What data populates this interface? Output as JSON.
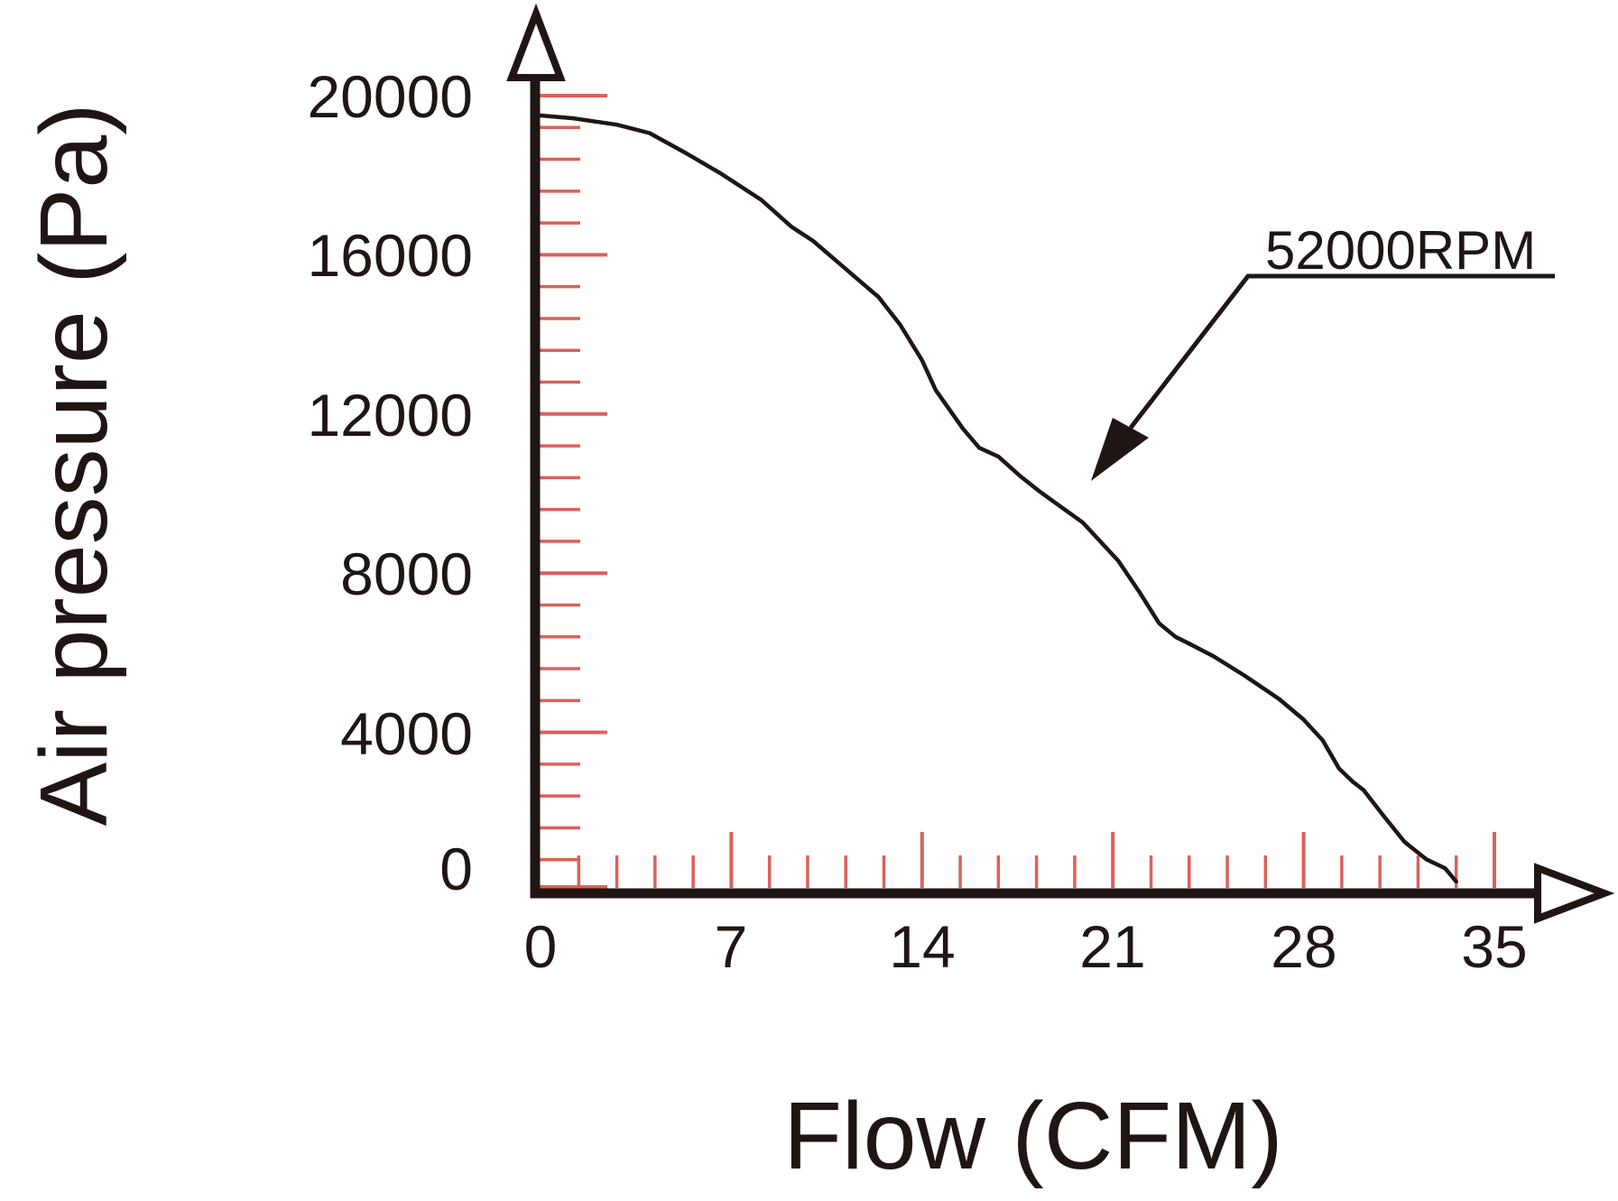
{
  "chart_data": {
    "type": "line",
    "title": "",
    "xlabel": "Flow (CFM)",
    "ylabel": "Air pressure (Pa)",
    "xlim": [
      0,
      35
    ],
    "ylim": [
      0,
      20000
    ],
    "grid": false,
    "legend_position": "none",
    "x_ticks": [
      0,
      7,
      14,
      21,
      28,
      35
    ],
    "x_tick_labels": [
      "0",
      "7",
      "14",
      "21",
      "28",
      "35"
    ],
    "x_minor_tick_step": 1.4,
    "y_ticks": [
      0,
      4000,
      8000,
      12000,
      16000,
      20000
    ],
    "y_tick_labels": [
      "0",
      "4000",
      "8000",
      "12000",
      "16000",
      "20000"
    ],
    "y_minor_tick_step": 800,
    "series": [
      {
        "name": "52000RPM",
        "points": [
          [
            0,
            19500
          ],
          [
            1.2,
            19430
          ],
          [
            2.8,
            19270
          ],
          [
            4.0,
            19060
          ],
          [
            5.3,
            18570
          ],
          [
            6.6,
            18050
          ],
          [
            8.1,
            17380
          ],
          [
            9.2,
            16710
          ],
          [
            10.0,
            16350
          ],
          [
            10.9,
            15820
          ],
          [
            11.7,
            15350
          ],
          [
            12.4,
            14940
          ],
          [
            13.2,
            14240
          ],
          [
            14.0,
            13350
          ],
          [
            14.5,
            12600
          ],
          [
            15.5,
            11630
          ],
          [
            16.1,
            11150
          ],
          [
            16.8,
            10930
          ],
          [
            17.6,
            10440
          ],
          [
            18.3,
            10060
          ],
          [
            19.9,
            9270
          ],
          [
            21.2,
            8310
          ],
          [
            22.0,
            7500
          ],
          [
            22.7,
            6740
          ],
          [
            23.3,
            6400
          ],
          [
            23.8,
            6230
          ],
          [
            24.7,
            5910
          ],
          [
            25.8,
            5440
          ],
          [
            27.1,
            4840
          ],
          [
            28.0,
            4320
          ],
          [
            28.7,
            3800
          ],
          [
            29.3,
            3090
          ],
          [
            29.8,
            2760
          ],
          [
            30.2,
            2550
          ],
          [
            30.9,
            1930
          ],
          [
            31.7,
            1250
          ],
          [
            32.5,
            810
          ],
          [
            33.2,
            580
          ],
          [
            33.6,
            250
          ]
        ]
      }
    ],
    "annotations": [
      {
        "text": "52000RPM",
        "arrow_tip_at": [
          20.2,
          10300
        ]
      }
    ]
  },
  "colors": {
    "ink": "#1f1613",
    "tick_red": "#dd605a",
    "background": "#ffffff"
  }
}
